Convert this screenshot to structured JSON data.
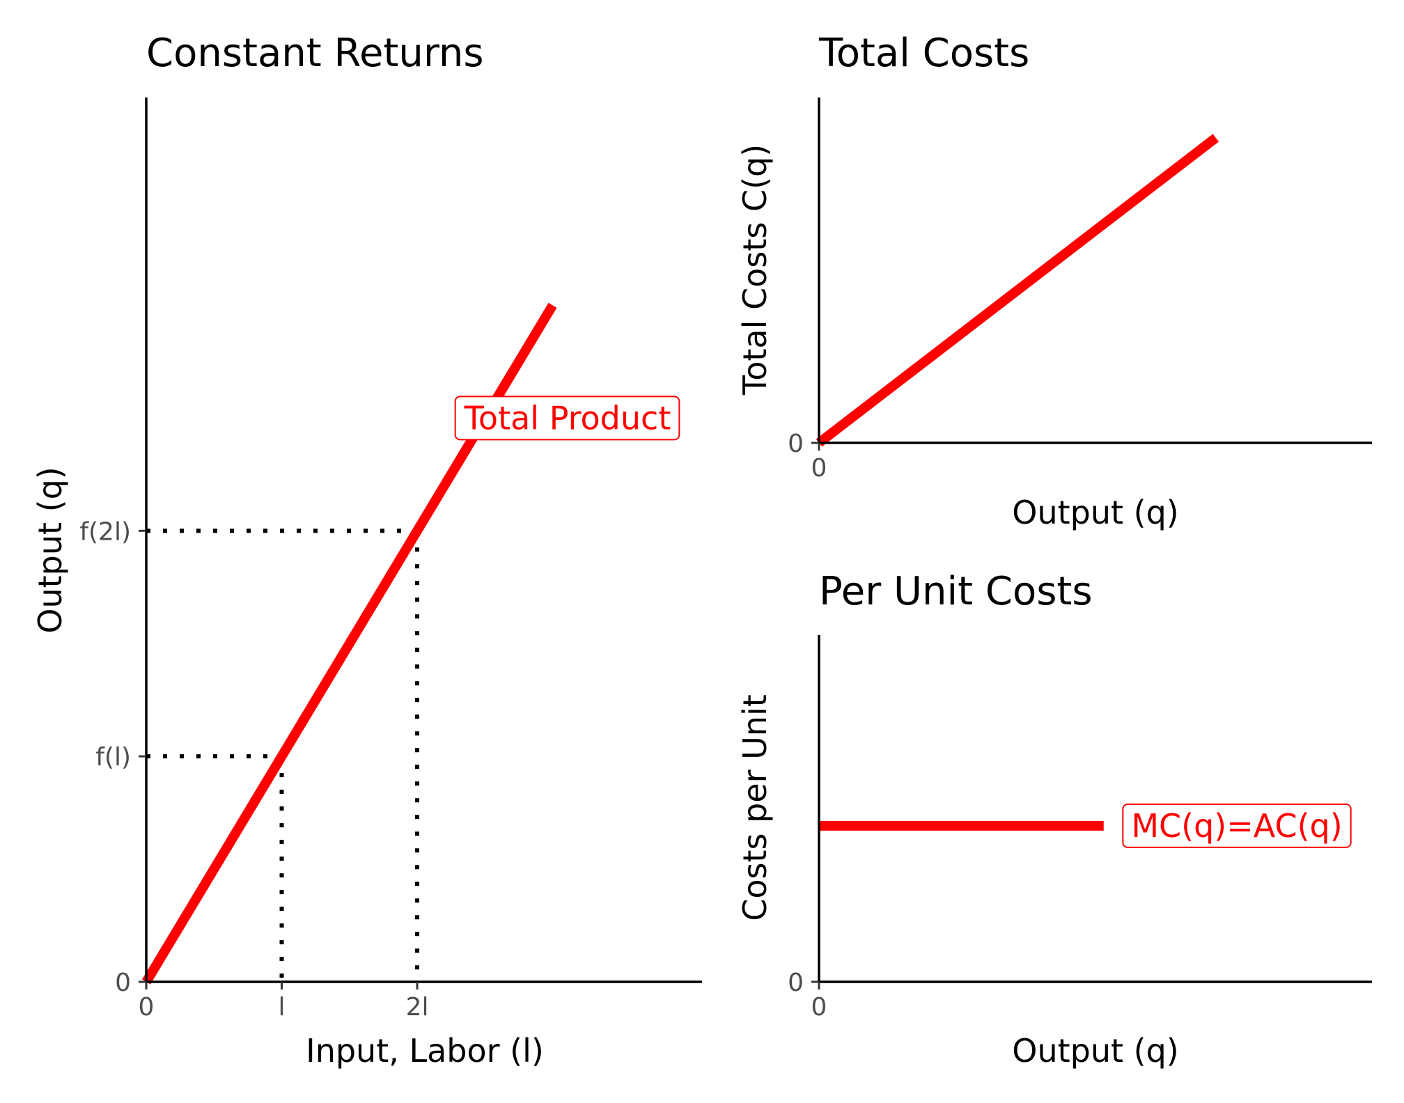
{
  "chart_data": [
    {
      "id": "left",
      "type": "line",
      "title": "Constant Returns",
      "xlabel": "Input, Labor (l)",
      "ylabel": "Output (q)",
      "xlim": [
        0,
        10
      ],
      "ylim": [
        0,
        10
      ],
      "x_ticks": [
        {
          "value": 0,
          "label": "0"
        },
        {
          "value": 3,
          "label": "l"
        },
        {
          "value": 6,
          "label": "2l"
        }
      ],
      "y_ticks": [
        {
          "value": 0,
          "label": "0"
        },
        {
          "value": 3,
          "label": "f(l)"
        },
        {
          "value": 6,
          "label": "f(2l)"
        }
      ],
      "series": [
        {
          "name": "Total Product",
          "color": "#ff0000",
          "x": [
            0,
            9
          ],
          "y": [
            0,
            9
          ]
        }
      ],
      "guides": [
        {
          "x": 3,
          "y": 3
        },
        {
          "x": 6,
          "y": 6
        }
      ],
      "annotations": [
        {
          "text": "Total Product",
          "x": 7.5,
          "y": 7.5,
          "color": "#ff0000"
        }
      ]
    },
    {
      "id": "top-right",
      "type": "line",
      "title": "Total Costs",
      "xlabel": "Output (q)",
      "ylabel": "Total Costs C(q)",
      "xlim": [
        0,
        10
      ],
      "ylim": [
        0,
        10
      ],
      "x_ticks": [
        {
          "value": 0,
          "label": "0"
        }
      ],
      "y_ticks": [
        {
          "value": 0,
          "label": "0"
        }
      ],
      "series": [
        {
          "name": "Total Costs",
          "color": "#ff0000",
          "x": [
            0,
            9.2
          ],
          "y": [
            0,
            9.2
          ]
        }
      ],
      "annotations": []
    },
    {
      "id": "bottom-right",
      "type": "line",
      "title": "Per Unit Costs",
      "xlabel": "Output (q)",
      "ylabel": "Costs per Unit",
      "xlim": [
        0,
        10
      ],
      "ylim": [
        0,
        10
      ],
      "x_ticks": [
        {
          "value": 0,
          "label": "0"
        }
      ],
      "y_ticks": [
        {
          "value": 0,
          "label": "0"
        }
      ],
      "series": [
        {
          "name": "MC(q)=AC(q)",
          "color": "#ff0000",
          "x": [
            0,
            6.6
          ],
          "y": [
            6,
            6
          ]
        }
      ],
      "annotations": [
        {
          "text": "MC(q)=AC(q)",
          "x": 7.5,
          "y": 6,
          "color": "#ff0000"
        }
      ]
    }
  ]
}
